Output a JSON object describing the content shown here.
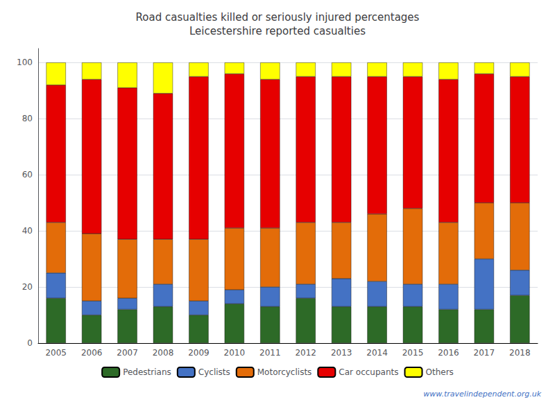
{
  "chart_data": {
    "type": "bar",
    "title": "Road casualties killed or seriously injured percentages\nLeicestershire reported casualties",
    "categories": [
      "2005",
      "2006",
      "2007",
      "2008",
      "2009",
      "2010",
      "2011",
      "2012",
      "2013",
      "2014",
      "2015",
      "2016",
      "2017",
      "2018"
    ],
    "series": [
      {
        "name": "Pedestrians",
        "color": "#2d6a27",
        "values": [
          16,
          10,
          12,
          13,
          10,
          14,
          13,
          16,
          13,
          13,
          13,
          12,
          12,
          17
        ]
      },
      {
        "name": "Cyclists",
        "color": "#4472c4",
        "values": [
          9,
          5,
          4,
          8,
          5,
          5,
          7,
          5,
          10,
          9,
          8,
          9,
          18,
          9
        ]
      },
      {
        "name": "Motorcyclists",
        "color": "#e36c09",
        "values": [
          18,
          24,
          21,
          16,
          22,
          22,
          21,
          22,
          20,
          24,
          27,
          22,
          20,
          24
        ]
      },
      {
        "name": "Car occupants",
        "color": "#e60000",
        "values": [
          49,
          55,
          54,
          52,
          58,
          55,
          53,
          52,
          52,
          49,
          47,
          51,
          46,
          45
        ]
      },
      {
        "name": "Others",
        "color": "#ffff00",
        "values": [
          8,
          6,
          9,
          11,
          5,
          4,
          6,
          5,
          5,
          5,
          5,
          6,
          4,
          5
        ]
      }
    ],
    "stacked": true,
    "ylim": [
      0,
      105
    ],
    "yticks": [
      0,
      20,
      40,
      60,
      80,
      100
    ],
    "grid": true,
    "legend": "bottom",
    "annotation": "www.travelindependent.org.uk"
  }
}
